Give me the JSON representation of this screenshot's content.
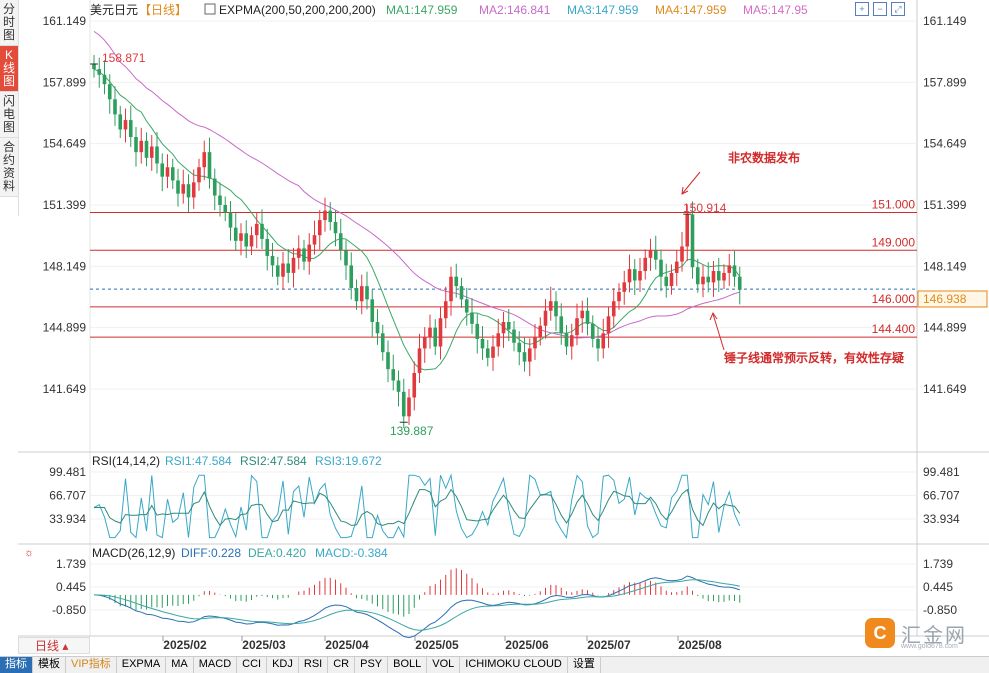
{
  "left_tabs": [
    "分时图",
    "K线图",
    "闪电图",
    "合约资料"
  ],
  "legend": {
    "symbol": "美元日元",
    "period_tag": "【日线】",
    "indicator": "EXPMA(200,50,200,200,200)",
    "ma": [
      "MA1:147.959",
      "MA2:146.841",
      "MA3:147.959",
      "MA4:147.959",
      "MA5:147.95"
    ]
  },
  "rsi_legend": {
    "name": "RSI(14,14,2)",
    "values": [
      "RSI1:47.584",
      "RSI2:47.584",
      "RSI3:19.672"
    ]
  },
  "macd_legend": {
    "name": "MACD(26,12,9)",
    "values": [
      "DIFF:0.228",
      "DEA:0.420",
      "MACD:-0.384"
    ]
  },
  "colors": {
    "up": "#e0393e",
    "down": "#2e9e5e",
    "hline": "#d22b2b",
    "ma1": "#3aa864",
    "ma2": "#c86ac8",
    "price_line": "#2a6fb5",
    "rsi1": "#38a8c8",
    "rsi2": "#2e8b7a",
    "diff": "#2a6fb5",
    "dea": "#38a8a0"
  },
  "chart_data": {
    "type": "candlestick",
    "title": "美元日元 日线",
    "price_axis_ticks": [
      161.149,
      157.899,
      154.649,
      151.399,
      148.149,
      144.899,
      141.649
    ],
    "date_labels": [
      "2025/02",
      "2025/03",
      "2025/04",
      "2025/05",
      "2025/06",
      "2025/07",
      "2025/08"
    ],
    "high_label": "158.871",
    "low_label": "139.887",
    "recent_high_label": "150.914",
    "current_price": "146.938",
    "horizontal_levels": [
      {
        "value": 151.0,
        "label": "151.000"
      },
      {
        "value": 149.0,
        "label": "149.000"
      },
      {
        "value": 146.0,
        "label": "146.000"
      },
      {
        "value": 144.4,
        "label": "144.400"
      }
    ],
    "annotations": [
      "非农数据发布",
      "锤子线通常预示反转，有效性存疑"
    ],
    "closes": [
      158.6,
      158.3,
      157.8,
      157.0,
      156.2,
      155.4,
      155.9,
      155.0,
      154.2,
      154.8,
      153.9,
      154.5,
      153.6,
      152.9,
      153.4,
      152.7,
      152.0,
      152.5,
      151.8,
      152.6,
      153.4,
      154.2,
      152.8,
      151.9,
      151.4,
      151.0,
      150.2,
      149.5,
      149.9,
      149.2,
      149.8,
      150.4,
      149.6,
      148.7,
      148.2,
      147.6,
      148.3,
      147.8,
      148.6,
      149.1,
      148.4,
      149.3,
      149.8,
      150.6,
      151.1,
      150.5,
      149.9,
      149.0,
      148.2,
      147.0,
      146.3,
      147.1,
      146.4,
      145.2,
      144.6,
      143.6,
      142.7,
      142.1,
      141.5,
      140.2,
      141.2,
      142.5,
      143.8,
      144.4,
      144.9,
      143.9,
      145.4,
      146.3,
      147.6,
      147.1,
      146.4,
      145.7,
      145.1,
      144.3,
      143.8,
      143.3,
      143.9,
      144.6,
      145.2,
      144.8,
      144.1,
      143.6,
      143.1,
      143.8,
      144.4,
      145.0,
      145.8,
      146.3,
      145.5,
      144.6,
      143.9,
      144.5,
      145.4,
      145.8,
      145.1,
      144.3,
      143.8,
      144.6,
      145.5,
      146.3,
      146.8,
      147.3,
      148.0,
      147.4,
      147.9,
      148.6,
      149.0,
      148.5,
      147.6,
      147.1,
      147.8,
      148.4,
      149.2,
      150.9,
      148.1,
      147.2,
      147.6,
      147.3,
      147.9,
      147.4,
      147.8,
      148.2,
      147.6,
      146.9
    ],
    "ma_values": {
      "MA1": 147.959,
      "MA2": 146.841,
      "MA3": 147.959,
      "MA4": 147.959,
      "MA5": 147.95
    },
    "rsi_axis_ticks": [
      99.481,
      66.707,
      33.934
    ],
    "rsi_values": {
      "RSI1": 47.584,
      "RSI2": 47.584,
      "RSI3": 19.672
    },
    "macd_axis_ticks": [
      1.739,
      0.445,
      -0.85
    ],
    "macd_values": {
      "DIFF": 0.228,
      "DEA": 0.42,
      "MACD": -0.384
    }
  },
  "period_box": "日线",
  "bottom_tabs": [
    "指标",
    "模板",
    "VIP指标",
    "EXPMA",
    "MA",
    "MACD",
    "CCI",
    "KDJ",
    "RSI",
    "CR",
    "PSY",
    "BOLL",
    "VOL",
    "ICHIMOKU CLOUD",
    "设置"
  ],
  "logo": {
    "mark": "C",
    "text": "汇金网",
    "url": "www.gold678.com"
  }
}
